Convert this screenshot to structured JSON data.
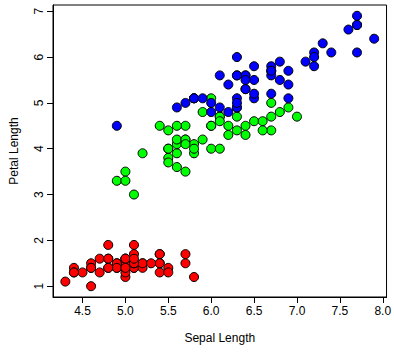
{
  "chart_data": {
    "type": "scatter",
    "x_label": "Sepal Length",
    "y_label": "Petal Length",
    "xlim": [
      4.156,
      8.044
    ],
    "ylim": [
      0.764,
      7.136
    ],
    "xticks": [
      4.5,
      {
        "value": 5,
        "label": "5.0"
      },
      5.5,
      {
        "value": 6,
        "label": "6.0"
      },
      6.5,
      {
        "value": 7,
        "label": "7.0"
      },
      7.5,
      {
        "value": 8,
        "label": "8.0"
      }
    ],
    "yticks": [
      1,
      2,
      3,
      4,
      5,
      6,
      7
    ],
    "grid": false,
    "marker": "circle",
    "series": [
      {
        "color": "#ff0000",
        "x": [
          5.1,
          4.9,
          4.7,
          4.6,
          5.0,
          5.4,
          4.6,
          5.0,
          4.4,
          4.9,
          5.4,
          4.8,
          4.8,
          4.3,
          5.8,
          5.7,
          5.4,
          5.1,
          5.7,
          5.1,
          5.4,
          5.1,
          4.6,
          5.1,
          4.8,
          5.0,
          5.0,
          5.2,
          5.2,
          4.7,
          4.8,
          5.4,
          5.2,
          5.5,
          4.9,
          5.0,
          5.5,
          4.9,
          4.4,
          5.1,
          5.0,
          4.5,
          4.4,
          5.0,
          5.1,
          4.8,
          5.1,
          4.6,
          5.3,
          5.0
        ],
        "values": [
          1.4,
          1.4,
          1.3,
          1.5,
          1.4,
          1.7,
          1.4,
          1.5,
          1.4,
          1.5,
          1.5,
          1.6,
          1.4,
          1.1,
          1.2,
          1.5,
          1.3,
          1.4,
          1.7,
          1.5,
          1.7,
          1.5,
          1.0,
          1.7,
          1.9,
          1.6,
          1.6,
          1.5,
          1.4,
          1.6,
          1.6,
          1.5,
          1.5,
          1.4,
          1.5,
          1.2,
          1.3,
          1.4,
          1.3,
          1.5,
          1.3,
          1.3,
          1.3,
          1.6,
          1.9,
          1.4,
          1.6,
          1.4,
          1.5,
          1.4
        ]
      },
      {
        "color": "#00ff00",
        "x": [
          7.0,
          6.4,
          6.9,
          5.5,
          6.5,
          5.7,
          6.3,
          4.9,
          6.6,
          5.2,
          5.0,
          5.9,
          6.0,
          6.1,
          5.6,
          6.7,
          5.6,
          5.8,
          6.2,
          5.6,
          5.9,
          6.1,
          6.3,
          6.1,
          6.4,
          6.6,
          6.8,
          6.7,
          6.0,
          5.7,
          5.5,
          5.5,
          5.8,
          6.0,
          5.4,
          6.0,
          6.7,
          6.3,
          5.6,
          5.5,
          5.5,
          6.1,
          5.8,
          5.0,
          5.6,
          5.7,
          5.7,
          6.2,
          5.1,
          5.7
        ],
        "values": [
          4.7,
          4.5,
          4.9,
          4.0,
          4.6,
          4.5,
          4.7,
          3.3,
          4.6,
          3.9,
          3.5,
          4.2,
          4.0,
          4.7,
          3.6,
          4.4,
          4.5,
          4.1,
          4.5,
          3.9,
          4.8,
          4.0,
          4.9,
          4.7,
          4.3,
          4.4,
          4.8,
          5.0,
          4.5,
          3.5,
          3.8,
          3.7,
          3.9,
          5.1,
          4.5,
          4.5,
          4.7,
          4.4,
          4.1,
          4.0,
          4.4,
          4.6,
          4.0,
          3.3,
          4.2,
          4.2,
          4.2,
          4.3,
          3.0,
          4.1
        ]
      },
      {
        "color": "#0000ff",
        "x": [
          6.3,
          5.8,
          7.1,
          6.3,
          6.5,
          7.6,
          4.9,
          7.3,
          6.7,
          7.2,
          6.5,
          6.4,
          6.8,
          5.7,
          5.8,
          6.4,
          6.5,
          7.7,
          7.7,
          6.0,
          6.9,
          5.6,
          7.7,
          6.3,
          6.7,
          7.2,
          6.2,
          6.1,
          6.4,
          7.2,
          7.4,
          7.9,
          6.4,
          6.3,
          6.1,
          7.7,
          6.3,
          6.4,
          6.0,
          6.9,
          6.7,
          6.9,
          5.8,
          6.8,
          6.7,
          6.7,
          6.3,
          6.5,
          6.2,
          5.9
        ],
        "values": [
          6.0,
          5.1,
          5.9,
          5.6,
          5.8,
          6.6,
          4.5,
          6.3,
          5.8,
          6.1,
          5.1,
          5.3,
          5.5,
          5.0,
          5.1,
          5.3,
          5.5,
          6.7,
          6.9,
          5.0,
          5.7,
          4.9,
          6.7,
          4.9,
          5.7,
          6.0,
          4.8,
          4.9,
          5.6,
          5.8,
          6.1,
          6.4,
          5.6,
          5.1,
          5.6,
          6.1,
          5.6,
          5.5,
          4.8,
          5.4,
          5.6,
          5.1,
          5.1,
          5.9,
          5.7,
          5.2,
          5.0,
          5.2,
          5.4,
          5.1
        ]
      }
    ]
  }
}
